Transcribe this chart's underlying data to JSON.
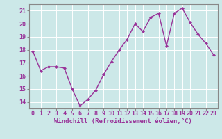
{
  "x": [
    0,
    1,
    2,
    3,
    4,
    5,
    6,
    7,
    8,
    9,
    10,
    11,
    12,
    13,
    14,
    15,
    16,
    17,
    18,
    19,
    20,
    21,
    22,
    23
  ],
  "y": [
    17.9,
    16.4,
    16.7,
    16.7,
    16.6,
    15.0,
    13.7,
    14.2,
    14.9,
    16.1,
    17.1,
    18.0,
    18.8,
    20.0,
    19.4,
    20.5,
    20.8,
    18.3,
    20.8,
    21.2,
    20.1,
    19.2,
    18.5,
    17.6
  ],
  "line_color": "#993399",
  "marker": "D",
  "marker_size": 2.5,
  "bg_color": "#cce8e8",
  "grid_color": "#ffffff",
  "xlabel": "Windchill (Refroidissement éolien,°C)",
  "xlabel_fontsize": 6.5,
  "ylabel_ticks": [
    14,
    15,
    16,
    17,
    18,
    19,
    20,
    21
  ],
  "xlim": [
    -0.5,
    23.5
  ],
  "ylim": [
    13.5,
    21.5
  ],
  "tick_fontsize": 6.0,
  "tick_color": "#993399",
  "label_color": "#993399",
  "spine_color": "#888888",
  "line_width": 1.0
}
